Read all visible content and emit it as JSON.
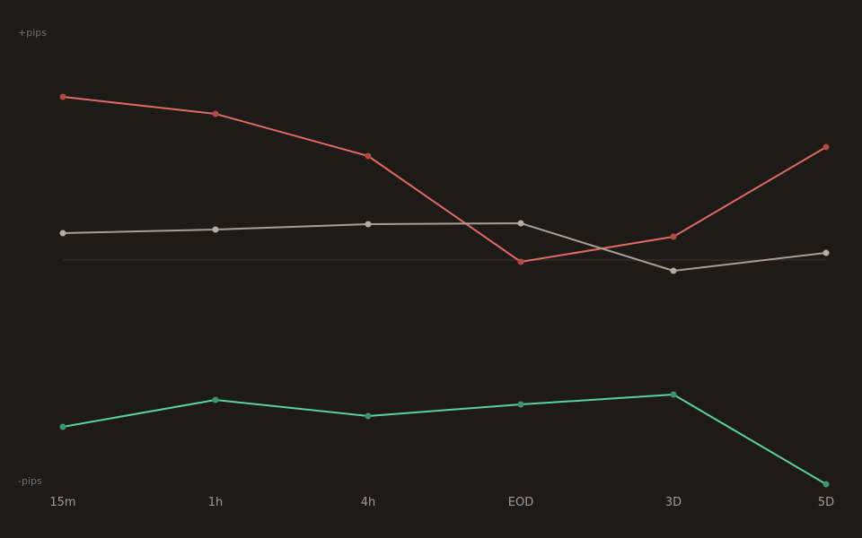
{
  "chart_data": {
    "type": "line",
    "categories": [
      "15m",
      "1h",
      "4h",
      "EOD",
      "3D",
      "5D"
    ],
    "y_top_label": "+pips",
    "y_bottom_label": "-pips",
    "ylim": [
      -100,
      100
    ],
    "zero_line": true,
    "grid": false,
    "series": [
      {
        "color": "#e06b5e",
        "marker_color": "#b34a44",
        "values": [
          72.8,
          65.2,
          46.4,
          -0.8,
          10.4,
          50.4
        ]
      },
      {
        "color": "#a99d94",
        "marker_color": "#b7aca3",
        "values": [
          12,
          13.6,
          16,
          16.4,
          -4.8,
          3.2
        ]
      },
      {
        "color": "#58d0aa",
        "marker_color": "#3b9575",
        "values": [
          -74.4,
          -62.4,
          -69.6,
          -64.4,
          -60,
          -100
        ]
      }
    ],
    "colors": {
      "background": "#1e1a18",
      "zero_line": "#3a3431",
      "tick_text": "#a49a92",
      "axis_note_text": "#77706a"
    }
  }
}
